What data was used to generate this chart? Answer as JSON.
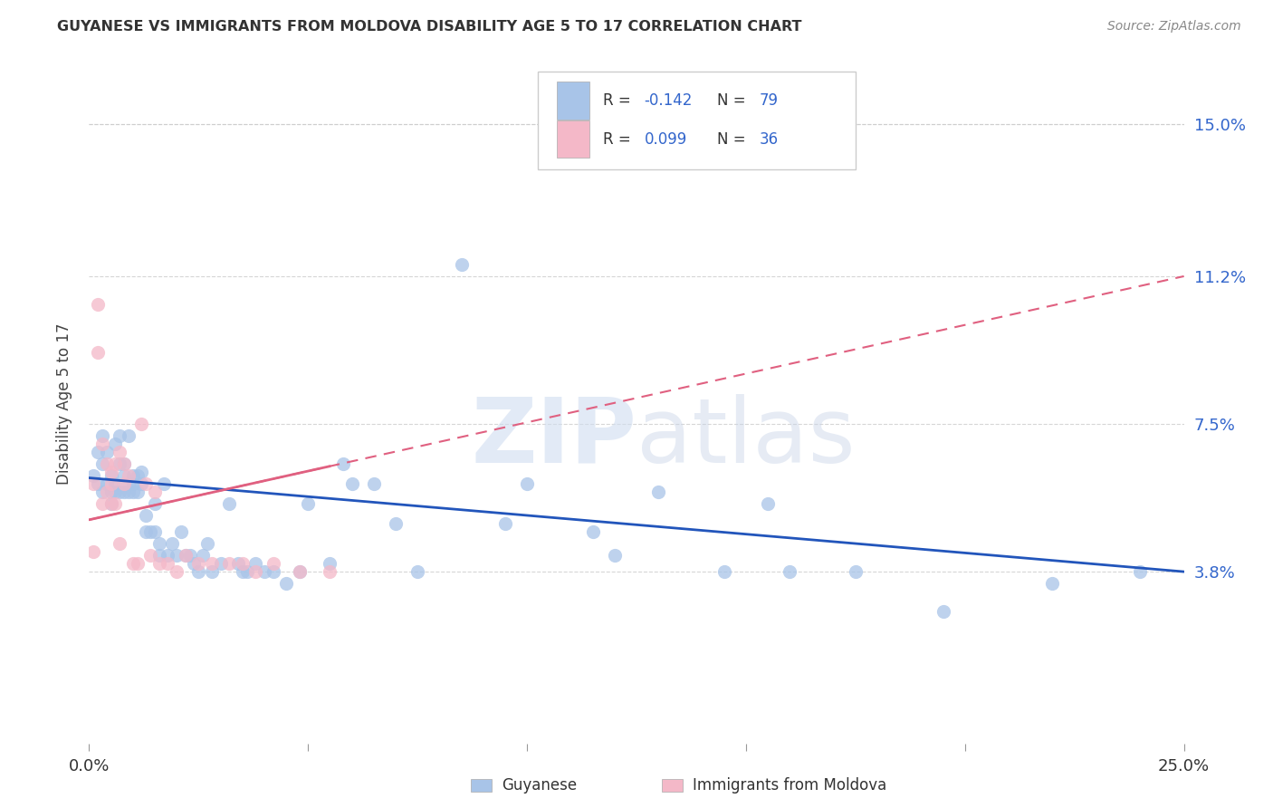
{
  "title": "GUYANESE VS IMMIGRANTS FROM MOLDOVA DISABILITY AGE 5 TO 17 CORRELATION CHART",
  "source": "Source: ZipAtlas.com",
  "ylabel": "Disability Age 5 to 17",
  "xlim": [
    0.0,
    0.25
  ],
  "ylim": [
    -0.005,
    0.165
  ],
  "ytick_right_labels": [
    "15.0%",
    "11.2%",
    "7.5%",
    "3.8%"
  ],
  "ytick_right_values": [
    0.15,
    0.112,
    0.075,
    0.038
  ],
  "blue_color": "#a8c4e8",
  "pink_color": "#f4b8c8",
  "blue_line_color": "#2255bb",
  "pink_line_color": "#e06080",
  "watermark_zip": "ZIP",
  "watermark_atlas": "atlas",
  "legend_r_blue": "-0.142",
  "legend_n_blue": "79",
  "legend_r_pink": "0.099",
  "legend_n_pink": "36",
  "guyanese_label": "Guyanese",
  "moldova_label": "Immigrants from Moldova",
  "blue_scatter_x": [
    0.001,
    0.002,
    0.002,
    0.003,
    0.003,
    0.003,
    0.004,
    0.004,
    0.005,
    0.005,
    0.005,
    0.006,
    0.006,
    0.006,
    0.007,
    0.007,
    0.007,
    0.008,
    0.008,
    0.008,
    0.009,
    0.009,
    0.009,
    0.01,
    0.01,
    0.01,
    0.011,
    0.011,
    0.012,
    0.012,
    0.013,
    0.013,
    0.014,
    0.015,
    0.015,
    0.016,
    0.016,
    0.017,
    0.018,
    0.019,
    0.02,
    0.021,
    0.022,
    0.023,
    0.024,
    0.025,
    0.026,
    0.027,
    0.028,
    0.03,
    0.032,
    0.034,
    0.035,
    0.036,
    0.038,
    0.04,
    0.042,
    0.045,
    0.048,
    0.05,
    0.055,
    0.058,
    0.06,
    0.065,
    0.07,
    0.075,
    0.085,
    0.095,
    0.1,
    0.115,
    0.12,
    0.13,
    0.145,
    0.155,
    0.16,
    0.175,
    0.195,
    0.22,
    0.24
  ],
  "blue_scatter_y": [
    0.062,
    0.06,
    0.068,
    0.058,
    0.065,
    0.072,
    0.06,
    0.068,
    0.058,
    0.062,
    0.055,
    0.06,
    0.058,
    0.07,
    0.058,
    0.065,
    0.072,
    0.058,
    0.062,
    0.065,
    0.06,
    0.058,
    0.072,
    0.06,
    0.058,
    0.062,
    0.058,
    0.062,
    0.06,
    0.063,
    0.048,
    0.052,
    0.048,
    0.048,
    0.055,
    0.045,
    0.042,
    0.06,
    0.042,
    0.045,
    0.042,
    0.048,
    0.042,
    0.042,
    0.04,
    0.038,
    0.042,
    0.045,
    0.038,
    0.04,
    0.055,
    0.04,
    0.038,
    0.038,
    0.04,
    0.038,
    0.038,
    0.035,
    0.038,
    0.055,
    0.04,
    0.065,
    0.06,
    0.06,
    0.05,
    0.038,
    0.115,
    0.05,
    0.06,
    0.048,
    0.042,
    0.058,
    0.038,
    0.055,
    0.038,
    0.038,
    0.028,
    0.035,
    0.038
  ],
  "pink_scatter_x": [
    0.001,
    0.001,
    0.002,
    0.002,
    0.003,
    0.003,
    0.004,
    0.004,
    0.005,
    0.005,
    0.005,
    0.006,
    0.006,
    0.007,
    0.007,
    0.008,
    0.008,
    0.009,
    0.01,
    0.011,
    0.012,
    0.013,
    0.014,
    0.015,
    0.016,
    0.018,
    0.02,
    0.022,
    0.025,
    0.028,
    0.032,
    0.035,
    0.038,
    0.042,
    0.048,
    0.055
  ],
  "pink_scatter_y": [
    0.06,
    0.043,
    0.105,
    0.093,
    0.07,
    0.055,
    0.065,
    0.058,
    0.06,
    0.063,
    0.055,
    0.065,
    0.055,
    0.068,
    0.045,
    0.065,
    0.06,
    0.062,
    0.04,
    0.04,
    0.075,
    0.06,
    0.042,
    0.058,
    0.04,
    0.04,
    0.038,
    0.042,
    0.04,
    0.04,
    0.04,
    0.04,
    0.038,
    0.04,
    0.038,
    0.038
  ],
  "blue_trend_x": [
    0.0,
    0.25
  ],
  "blue_trend_y": [
    0.0615,
    0.038
  ],
  "pink_trend_x": [
    0.0,
    0.25
  ],
  "pink_trend_y": [
    0.051,
    0.112
  ],
  "background_color": "#ffffff",
  "grid_color": "#cccccc"
}
